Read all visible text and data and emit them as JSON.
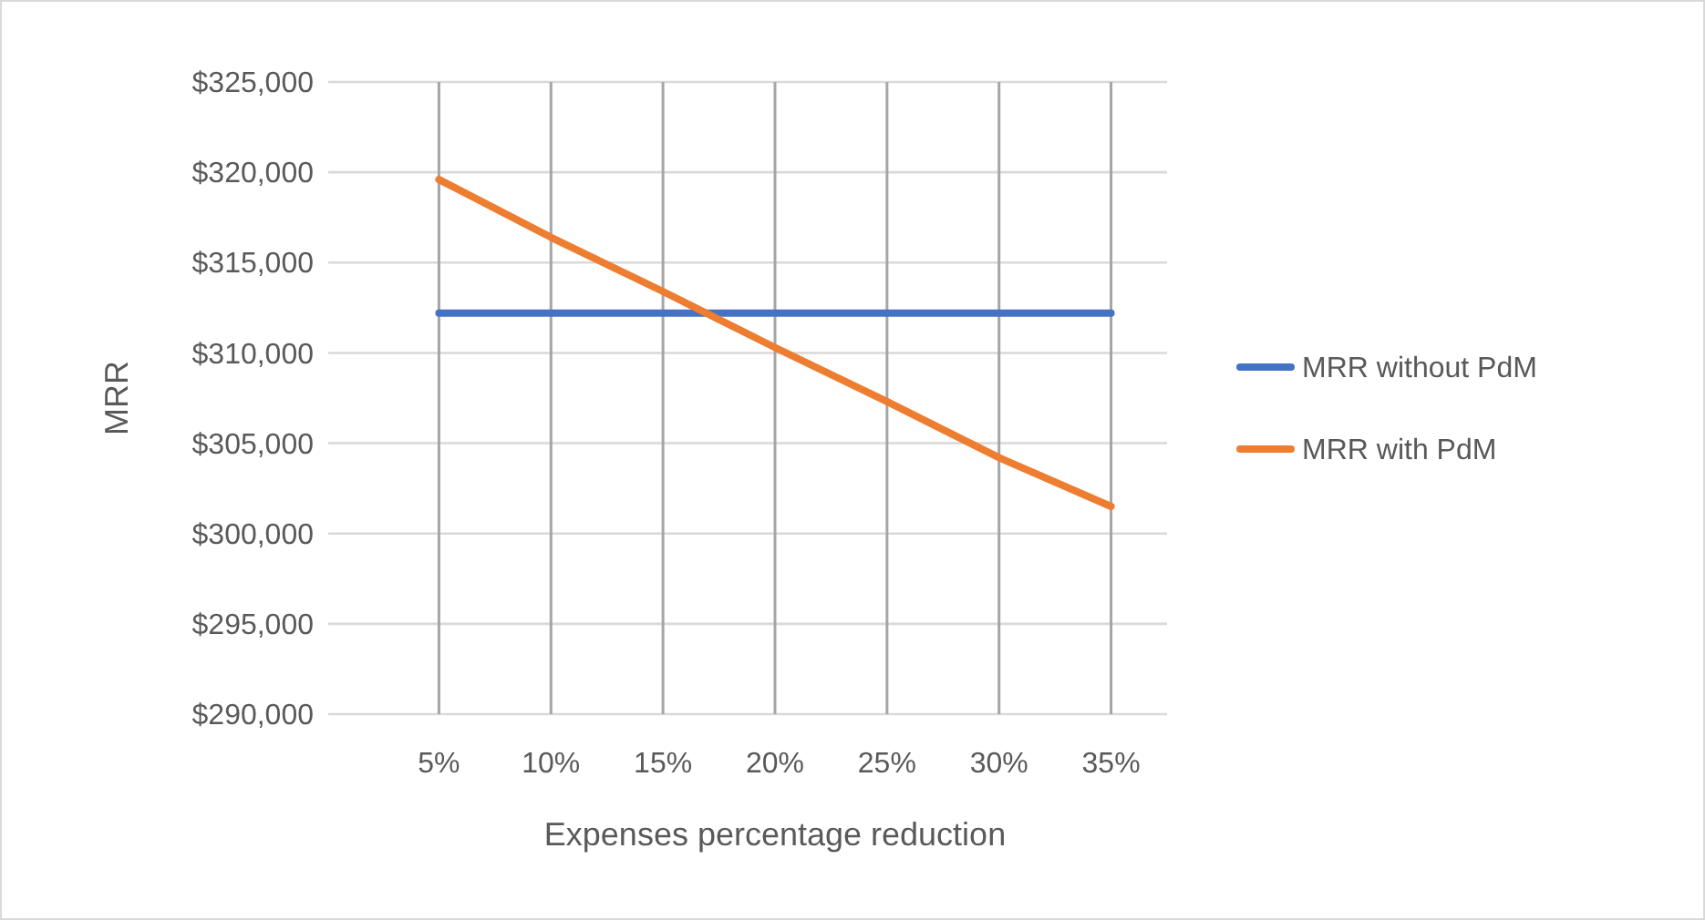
{
  "chart_data": {
    "type": "line",
    "xlabel": "Expenses percentage reduction",
    "ylabel": "MRR",
    "categories": [
      "5%",
      "10%",
      "15%",
      "20%",
      "25%",
      "30%",
      "35%"
    ],
    "series": [
      {
        "name": "MRR without PdM",
        "color": "#4472c4",
        "values": [
          312200,
          312200,
          312200,
          312200,
          312200,
          312200,
          312200
        ]
      },
      {
        "name": "MRR with PdM",
        "color": "#ed7d31",
        "values": [
          319600,
          316400,
          313400,
          310300,
          307300,
          304200,
          301500
        ]
      }
    ],
    "ylim": [
      290000,
      325000
    ],
    "yticks": [
      {
        "value": 290000,
        "label": "$290,000"
      },
      {
        "value": 295000,
        "label": "$295,000"
      },
      {
        "value": 300000,
        "label": "$300,000"
      },
      {
        "value": 305000,
        "label": "$305,000"
      },
      {
        "value": 310000,
        "label": "$310,000"
      },
      {
        "value": 315000,
        "label": "$315,000"
      },
      {
        "value": 320000,
        "label": "$320,000"
      },
      {
        "value": 325000,
        "label": "$325,000"
      }
    ],
    "grid": true,
    "legend": "right",
    "marker": "none",
    "line_style": "solid"
  }
}
